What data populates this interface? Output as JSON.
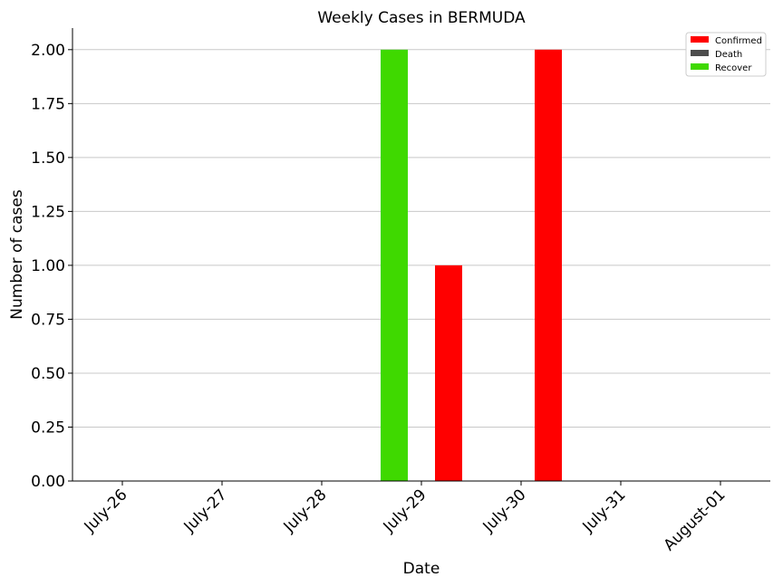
{
  "chart_data": {
    "type": "bar",
    "title": "Weekly Cases in BERMUDA",
    "xlabel": "Date",
    "ylabel": "Number of cases",
    "categories": [
      "July-26",
      "July-27",
      "July-28",
      "July-29",
      "July-30",
      "July-31",
      "August-01"
    ],
    "series": [
      {
        "name": "Confirmed",
        "color": "#ff0000",
        "values": [
          0,
          0,
          0,
          1,
          2,
          0,
          0
        ]
      },
      {
        "name": "Death",
        "color": "#4d4d4d",
        "values": [
          0,
          0,
          0,
          0,
          0,
          0,
          0
        ]
      },
      {
        "name": "Recover",
        "color": "#3fd900",
        "values": [
          0,
          0,
          0,
          2,
          0,
          0,
          0
        ]
      }
    ],
    "ylim": [
      0,
      2.1
    ],
    "yticks": [
      "0.00",
      "0.25",
      "0.50",
      "0.75",
      "1.00",
      "1.25",
      "1.50",
      "1.75",
      "2.00"
    ],
    "grid": "horizontal",
    "legend_position": "top-right"
  }
}
